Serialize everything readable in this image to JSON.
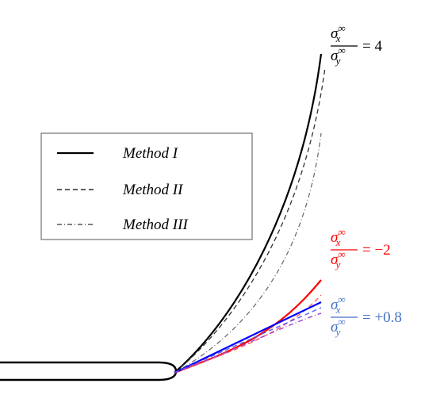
{
  "legend": {
    "entries": [
      "Method I",
      "Method II",
      "Method III"
    ]
  },
  "annotations": [
    {
      "num_base": "σ",
      "num_sub": "x",
      "num_sup": "∞",
      "den_base": "σ",
      "den_sub": "y",
      "den_sup": "∞",
      "value": "= 4",
      "color": "#000000"
    },
    {
      "num_base": "σ",
      "num_sub": "x",
      "num_sup": "∞",
      "den_base": "σ",
      "den_sub": "y",
      "den_sup": "∞",
      "value": "= −2",
      "color": "#ff0000"
    },
    {
      "num_base": "σ",
      "num_sub": "x",
      "num_sup": "∞",
      "den_base": "σ",
      "den_sub": "y",
      "den_sup": "∞",
      "value": "= +0.8",
      "color": "#4472c4"
    }
  ]
}
